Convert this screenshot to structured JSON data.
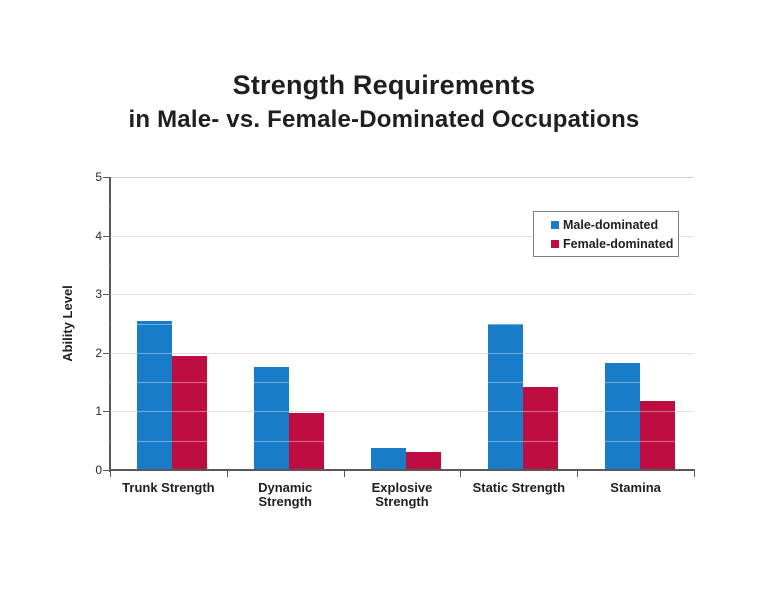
{
  "title": {
    "line1": "Strength Requirements",
    "line2": "in Male- vs. Female-Dominated Occupations"
  },
  "chart_data": {
    "type": "bar",
    "categories": [
      "Trunk Strength",
      "Dynamic Strength",
      "Explosive Strength",
      "Static Strength",
      "Stamina"
    ],
    "series": [
      {
        "name": "Male-dominated",
        "color": "#187cc8",
        "values": [
          2.55,
          1.75,
          0.38,
          2.5,
          1.83
        ]
      },
      {
        "name": "Female-dominated",
        "color": "#be0e41",
        "values": [
          1.95,
          0.97,
          0.31,
          1.42,
          1.17
        ]
      }
    ],
    "title": "Strength Requirements in Male- vs. Female-Dominated Occupations",
    "xlabel": "",
    "ylabel": "Ability Level",
    "ylim": [
      0,
      5
    ],
    "yticks": [
      0,
      1,
      2,
      3,
      4,
      5
    ],
    "grid": true,
    "legend_position": "upper-right"
  },
  "colors": {
    "bar_male": "#187cc8",
    "bar_female": "#be0e41",
    "gridline": "#cfcfcf",
    "axis": "#595959",
    "text": "#1f1f1f",
    "background": "#ffffff"
  }
}
